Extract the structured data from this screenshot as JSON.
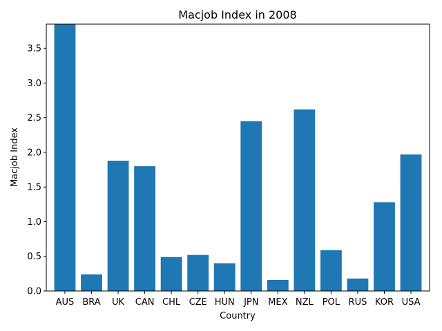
{
  "chart_data": {
    "type": "bar",
    "title": "Macjob Index in 2008",
    "xlabel": "Country",
    "ylabel": "Macjob Index",
    "categories": [
      "AUS",
      "BRA",
      "UK",
      "CAN",
      "CHL",
      "CZE",
      "HUN",
      "JPN",
      "MEX",
      "NZL",
      "POL",
      "RUS",
      "KOR",
      "USA"
    ],
    "values": [
      3.85,
      0.24,
      1.88,
      1.8,
      0.49,
      0.52,
      0.4,
      2.45,
      0.16,
      2.62,
      0.59,
      0.18,
      1.28,
      1.97
    ],
    "ylim": [
      0,
      3.85
    ],
    "yticks": [
      0.0,
      0.5,
      1.0,
      1.5,
      2.0,
      2.5,
      3.0,
      3.5
    ],
    "ytick_labels": [
      "0.0",
      "0.5",
      "1.0",
      "1.5",
      "2.0",
      "2.5",
      "3.0",
      "3.5"
    ],
    "bar_color": "#1f77b4",
    "grid": false,
    "legend": false
  }
}
